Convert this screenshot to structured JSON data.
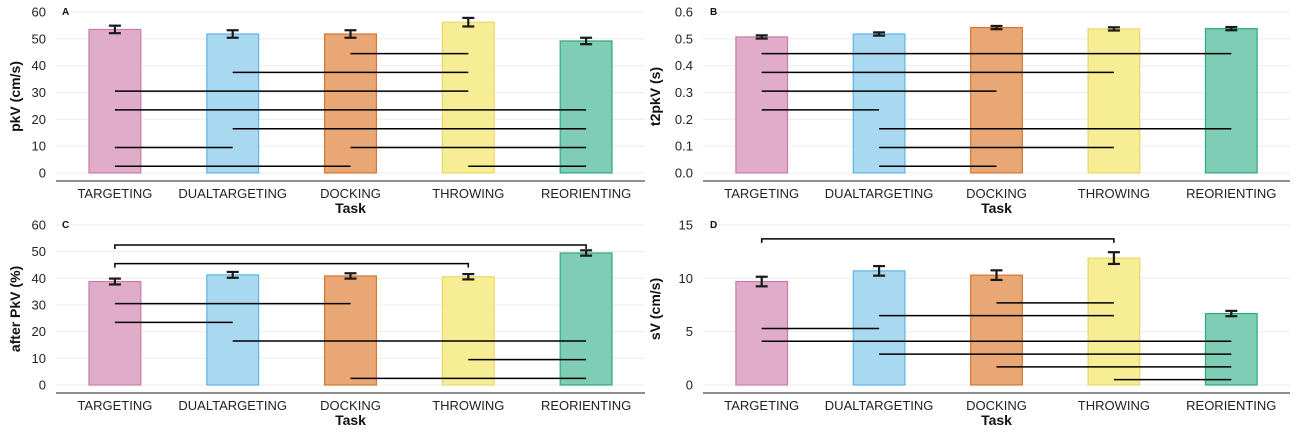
{
  "chart_data": [
    {
      "panel": "A",
      "type": "bar",
      "categories": [
        "TARGETING",
        "DUALTARGETING",
        "DOCKING",
        "THROWING",
        "REORIENTING"
      ],
      "values": [
        53.5,
        51.8,
        51.8,
        56.2,
        49.2
      ],
      "errors": [
        1.4,
        1.4,
        1.4,
        1.6,
        1.2
      ],
      "colors": [
        "#e0acc9",
        "#a9d8f1",
        "#e9a775",
        "#f7ed95",
        "#7fcdb4"
      ],
      "edge_colors": [
        "#c77fa8",
        "#5fb5e4",
        "#d4762f",
        "#ead866",
        "#2ea883"
      ],
      "xlabel": "Task",
      "ylabel": "pkV (cm/s)",
      "ylim": [
        -3,
        60
      ],
      "yticks": [
        0,
        10,
        20,
        30,
        40,
        50,
        60
      ],
      "tick_labels": [
        "0",
        "10",
        "20",
        "30",
        "40",
        "50",
        "60"
      ],
      "significance": [
        {
          "from": 2,
          "to": 3,
          "y": 44.5
        },
        {
          "from": 1,
          "to": 3,
          "y": 37.5
        },
        {
          "from": 0,
          "to": 3,
          "y": 30.5
        },
        {
          "from": 0,
          "to": 4,
          "y": 23.5
        },
        {
          "from": 1,
          "to": 4,
          "y": 16.5
        },
        {
          "from": 0,
          "to": 1,
          "y": 9.5
        },
        {
          "from": 2,
          "to": 4,
          "y": 9.5
        },
        {
          "from": 0,
          "to": 2,
          "y": 2.5
        },
        {
          "from": 3,
          "to": 4,
          "y": 2.5
        }
      ]
    },
    {
      "panel": "B",
      "type": "bar",
      "categories": [
        "TARGETING",
        "DUALTARGETING",
        "DOCKING",
        "THROWING",
        "REORIENTING"
      ],
      "values": [
        0.507,
        0.518,
        0.542,
        0.537,
        0.538
      ],
      "errors": [
        0.006,
        0.006,
        0.006,
        0.006,
        0.006
      ],
      "colors": [
        "#e0acc9",
        "#a9d8f1",
        "#e9a775",
        "#f7ed95",
        "#7fcdb4"
      ],
      "edge_colors": [
        "#c77fa8",
        "#5fb5e4",
        "#d4762f",
        "#ead866",
        "#2ea883"
      ],
      "xlabel": "Task",
      "ylabel": "t2pkV (s)",
      "ylim": [
        -0.03,
        0.6
      ],
      "yticks": [
        0,
        0.1,
        0.2,
        0.3,
        0.4,
        0.5,
        0.6
      ],
      "tick_labels": [
        "0.0",
        "0.1",
        "0.2",
        "0.3",
        "0.4",
        "0.5",
        "0.6"
      ],
      "significance": [
        {
          "from": 0,
          "to": 4,
          "y": 0.445
        },
        {
          "from": 0,
          "to": 3,
          "y": 0.375
        },
        {
          "from": 0,
          "to": 2,
          "y": 0.305
        },
        {
          "from": 0,
          "to": 1,
          "y": 0.235
        },
        {
          "from": 1,
          "to": 4,
          "y": 0.165
        },
        {
          "from": 1,
          "to": 3,
          "y": 0.095
        },
        {
          "from": 1,
          "to": 2,
          "y": 0.025
        }
      ]
    },
    {
      "panel": "C",
      "type": "bar",
      "categories": [
        "TARGETING",
        "DUALTARGETING",
        "DOCKING",
        "THROWING",
        "REORIENTING"
      ],
      "values": [
        38.8,
        41.3,
        40.9,
        40.6,
        49.5
      ],
      "errors": [
        1.1,
        1.1,
        1.0,
        1.0,
        1.0
      ],
      "colors": [
        "#e0acc9",
        "#a9d8f1",
        "#e9a775",
        "#f7ed95",
        "#7fcdb4"
      ],
      "edge_colors": [
        "#c77fa8",
        "#5fb5e4",
        "#d4762f",
        "#ead866",
        "#2ea883"
      ],
      "xlabel": "Task",
      "ylabel": "after PkV (%)",
      "ylim": [
        -3,
        60
      ],
      "yticks": [
        0,
        10,
        20,
        30,
        40,
        50,
        60
      ],
      "tick_labels": [
        "0",
        "10",
        "20",
        "30",
        "40",
        "50",
        "60"
      ],
      "significance": [
        {
          "from": 0,
          "to": 4,
          "y": 52.5,
          "bracket": true
        },
        {
          "from": 0,
          "to": 3,
          "y": 45.5,
          "bracket": true
        },
        {
          "from": 0,
          "to": 2,
          "y": 30.5
        },
        {
          "from": 0,
          "to": 1,
          "y": 23.5
        },
        {
          "from": 1,
          "to": 4,
          "y": 16.5
        },
        {
          "from": 3,
          "to": 4,
          "y": 9.5
        },
        {
          "from": 2,
          "to": 4,
          "y": 2.5
        }
      ]
    },
    {
      "panel": "D",
      "type": "bar",
      "categories": [
        "TARGETING",
        "DUALTARGETING",
        "DOCKING",
        "THROWING",
        "REORIENTING"
      ],
      "values": [
        9.7,
        10.7,
        10.3,
        11.9,
        6.7
      ],
      "errors": [
        0.45,
        0.45,
        0.45,
        0.55,
        0.25
      ],
      "colors": [
        "#e0acc9",
        "#a9d8f1",
        "#e9a775",
        "#f7ed95",
        "#7fcdb4"
      ],
      "edge_colors": [
        "#c77fa8",
        "#5fb5e4",
        "#d4762f",
        "#ead866",
        "#2ea883"
      ],
      "xlabel": "Task",
      "ylabel": "sV (cm/s)",
      "ylim": [
        -0.75,
        15
      ],
      "yticks": [
        0,
        5,
        10,
        15
      ],
      "tick_labels": [
        "0",
        "5",
        "10",
        "15"
      ],
      "significance": [
        {
          "from": 0,
          "to": 3,
          "y": 13.7,
          "bracket": true
        },
        {
          "from": 2,
          "to": 3,
          "y": 7.7
        },
        {
          "from": 1,
          "to": 3,
          "y": 6.5
        },
        {
          "from": 0,
          "to": 1,
          "y": 5.3
        },
        {
          "from": 0,
          "to": 4,
          "y": 4.1
        },
        {
          "from": 1,
          "to": 4,
          "y": 2.9
        },
        {
          "from": 2,
          "to": 4,
          "y": 1.7
        },
        {
          "from": 3,
          "to": 4,
          "y": 0.5
        }
      ]
    }
  ]
}
